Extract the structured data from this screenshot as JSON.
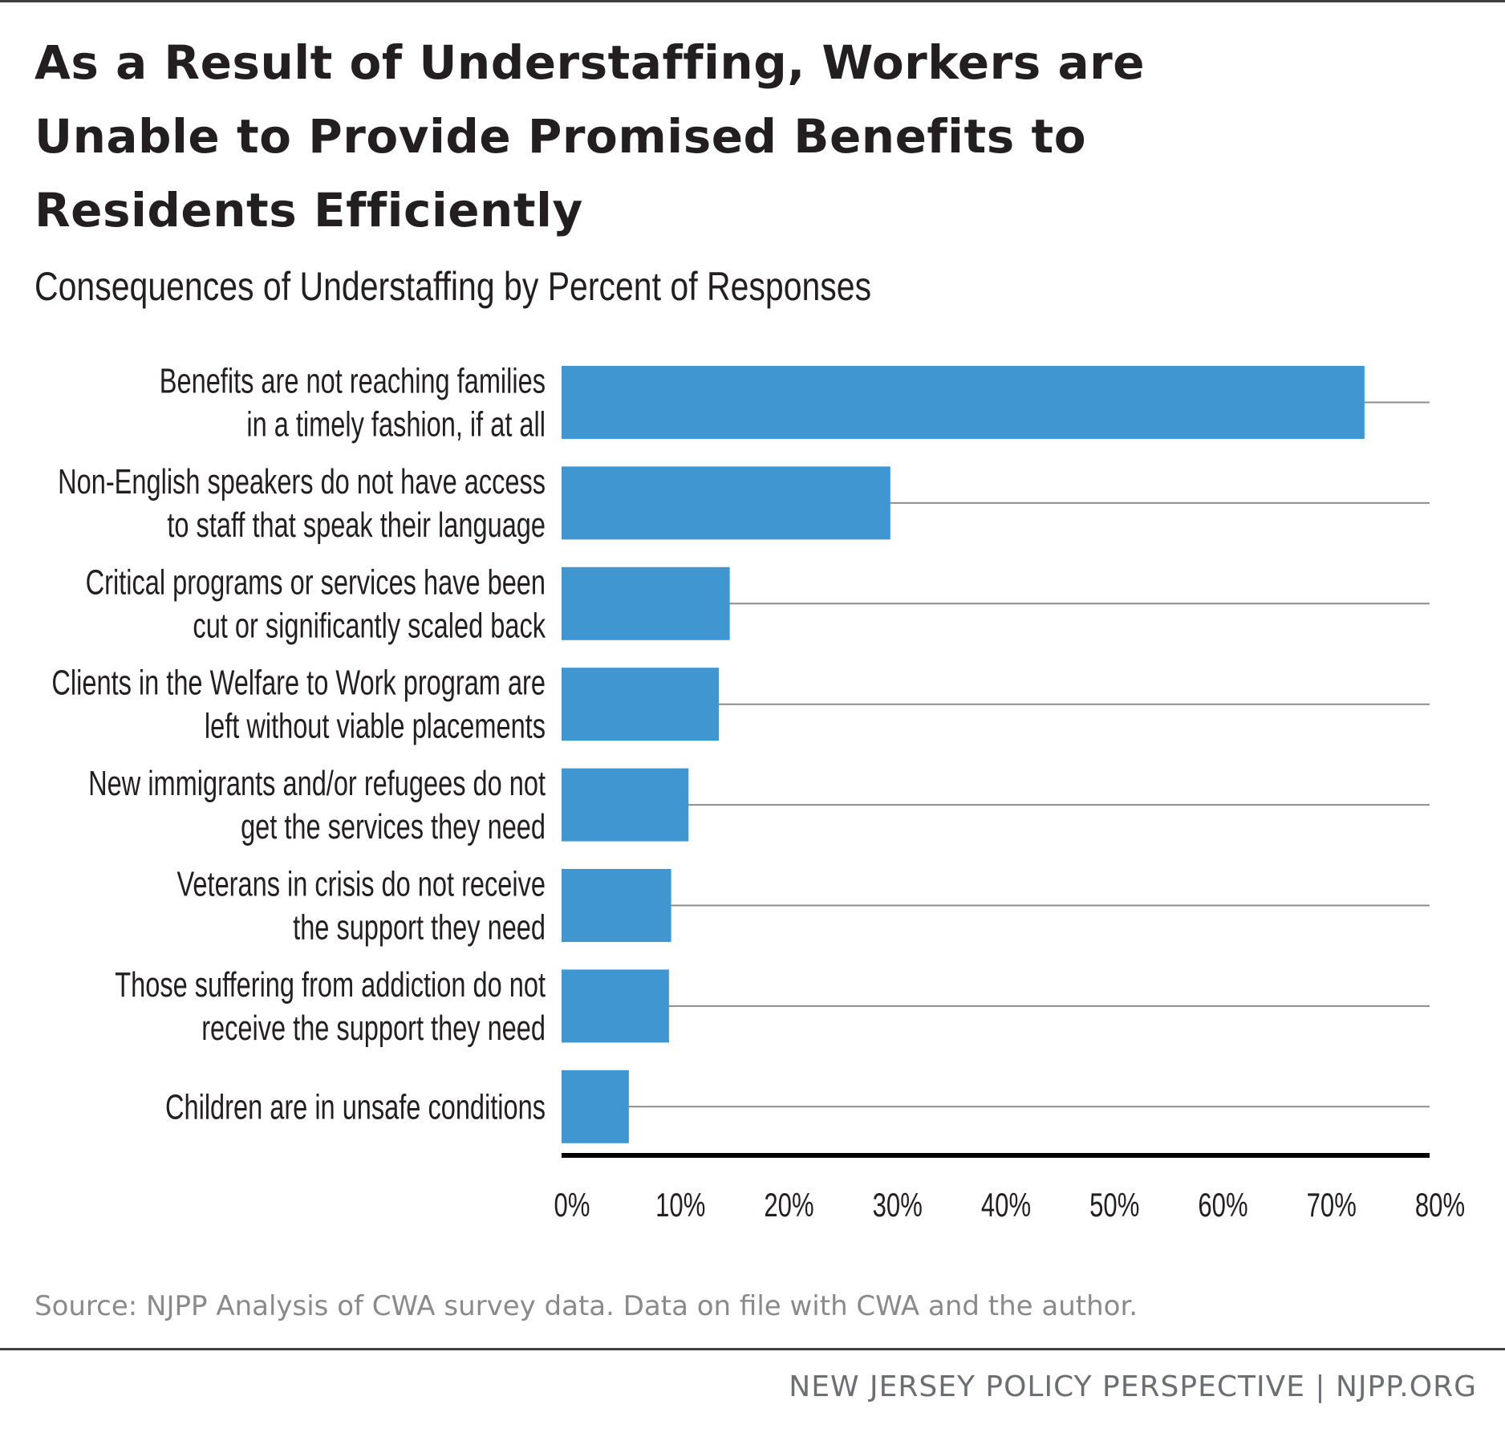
{
  "header": {
    "title_lines": [
      "As a Result of Understaffing, Workers are",
      "Unable to Provide Promised Benefits to",
      "Residents Efficiently"
    ],
    "subtitle": "Consequences of Understaffing by Percent of Responses"
  },
  "chart_data": {
    "type": "bar",
    "orientation": "horizontal",
    "title": "As a Result of Understaffing, Workers are Unable to Provide Promised Benefits to Residents Efficiently",
    "subtitle": "Consequences of Understaffing by Percent of Responses",
    "categories": [
      [
        "Benefits are not reaching families",
        "in a timely fashion, if at all"
      ],
      [
        "Non-English speakers do not have access",
        "to staff that speak their language"
      ],
      [
        "Critical programs or services have been",
        "cut or significantly scaled back"
      ],
      [
        "Clients in the Welfare to Work program are",
        "left without viable placements"
      ],
      [
        "New immigrants and/or refugees do not",
        "get the services they need"
      ],
      [
        "Veterans in crisis do not receive",
        "the support they need"
      ],
      [
        "Those suffering from addiction do not",
        "receive the support they need"
      ],
      [
        "Children are in unsafe conditions"
      ]
    ],
    "values": [
      74,
      30.3,
      15.5,
      14.5,
      11.7,
      10.1,
      9.9,
      6.2
    ],
    "xlim": [
      0,
      80
    ],
    "ticks": [
      0,
      10,
      20,
      30,
      40,
      50,
      60,
      70,
      80
    ],
    "tick_labels": [
      "0%",
      "10%",
      "20%",
      "30%",
      "40%",
      "50%",
      "60%",
      "70%",
      "80%"
    ],
    "xlabel": "",
    "ylabel": "",
    "grid": true,
    "bar_color": "#3f96d1"
  },
  "source": "Source: NJPP Analysis of CWA survey data. Data on file with CWA and the author.",
  "footer": "NEW JERSEY POLICY PERSPECTIVE | NJPP.ORG"
}
